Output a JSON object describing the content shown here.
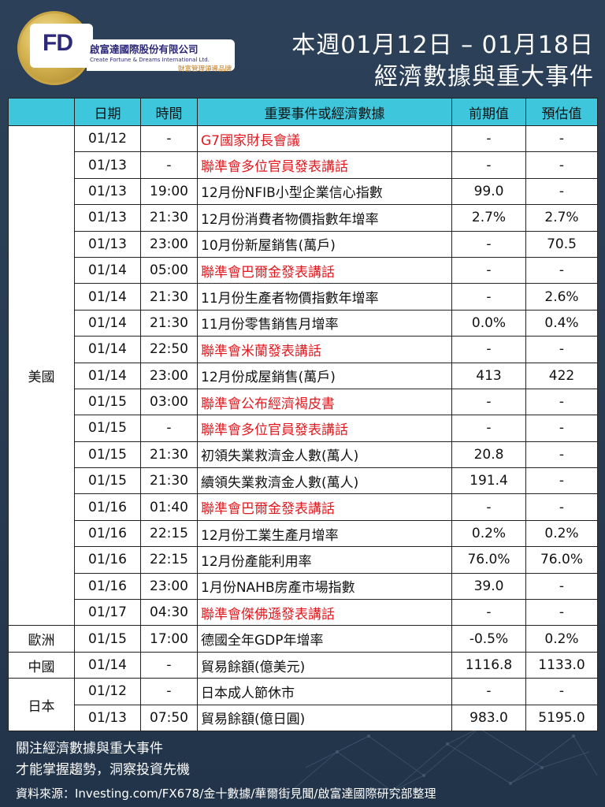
{
  "header": {
    "logo_letters": "FD",
    "company_zh": "啟富達國際股份有限公司",
    "company_en": "Create Fortune & Dreams International Ltd.",
    "company_tagline": "財富管理領導品牌",
    "title_line1": "本週01月12日 – 01月18日",
    "title_line2": "經濟數據與重大事件"
  },
  "table": {
    "headers": [
      "",
      "日期",
      "時間",
      "重要事件或經濟數據",
      "前期值",
      "預估值"
    ],
    "regions": [
      {
        "name": "美國",
        "rows": [
          {
            "date": "01/12",
            "time": "-",
            "event": "G7國家財長會議",
            "prev": "-",
            "est": "-",
            "highlight": true
          },
          {
            "date": "01/13",
            "time": "-",
            "event": "聯準會多位官員發表講話",
            "prev": "-",
            "est": "-",
            "highlight": true
          },
          {
            "date": "01/13",
            "time": "19:00",
            "event": "12月份NFIB小型企業信心指數",
            "prev": "99.0",
            "est": "-",
            "highlight": false
          },
          {
            "date": "01/13",
            "time": "21:30",
            "event": "12月份消費者物價指數年增率",
            "prev": "2.7%",
            "est": "2.7%",
            "highlight": false
          },
          {
            "date": "01/13",
            "time": "23:00",
            "event": "10月份新屋銷售(萬戶)",
            "prev": "-",
            "est": "70.5",
            "highlight": false
          },
          {
            "date": "01/14",
            "time": "05:00",
            "event": "聯準會巴爾金發表講話",
            "prev": "-",
            "est": "-",
            "highlight": true
          },
          {
            "date": "01/14",
            "time": "21:30",
            "event": "11月份生產者物價指數年增率",
            "prev": "-",
            "est": "2.6%",
            "highlight": false
          },
          {
            "date": "01/14",
            "time": "21:30",
            "event": "11月份零售銷售月增率",
            "prev": "0.0%",
            "est": "0.4%",
            "highlight": false
          },
          {
            "date": "01/14",
            "time": "22:50",
            "event": "聯準會米蘭發表講話",
            "prev": "-",
            "est": "-",
            "highlight": true
          },
          {
            "date": "01/14",
            "time": "23:00",
            "event": "12月份成屋銷售(萬戶)",
            "prev": "413",
            "est": "422",
            "highlight": false
          },
          {
            "date": "01/15",
            "time": "03:00",
            "event": "聯準會公布經濟褐皮書",
            "prev": "-",
            "est": "-",
            "highlight": true
          },
          {
            "date": "01/15",
            "time": "-",
            "event": "聯準會多位官員發表講話",
            "prev": "-",
            "est": "-",
            "highlight": true
          },
          {
            "date": "01/15",
            "time": "21:30",
            "event": "初領失業救濟金人數(萬人)",
            "prev": "20.8",
            "est": "-",
            "highlight": false
          },
          {
            "date": "01/15",
            "time": "21:30",
            "event": "續領失業救濟金人數(萬人)",
            "prev": "191.4",
            "est": "-",
            "highlight": false
          },
          {
            "date": "01/16",
            "time": "01:40",
            "event": "聯準會巴爾金發表講話",
            "prev": "-",
            "est": "-",
            "highlight": true
          },
          {
            "date": "01/16",
            "time": "22:15",
            "event": "12月份工業生產月增率",
            "prev": "0.2%",
            "est": "0.2%",
            "highlight": false
          },
          {
            "date": "01/16",
            "time": "22:15",
            "event": "12月份產能利用率",
            "prev": "76.0%",
            "est": "76.0%",
            "highlight": false
          },
          {
            "date": "01/16",
            "time": "23:00",
            "event": "1月份NAHB房產市場指數",
            "prev": "39.0",
            "est": "-",
            "highlight": false
          },
          {
            "date": "01/17",
            "time": "04:30",
            "event": "聯準會傑佛遜發表講話",
            "prev": "-",
            "est": "-",
            "highlight": true
          }
        ]
      },
      {
        "name": "歐洲",
        "rows": [
          {
            "date": "01/15",
            "time": "17:00",
            "event": "德國全年GDP年增率",
            "prev": "-0.5%",
            "est": "0.2%",
            "highlight": false
          }
        ]
      },
      {
        "name": "中國",
        "rows": [
          {
            "date": "01/14",
            "time": "-",
            "event": "貿易餘額(億美元)",
            "prev": "1116.8",
            "est": "1133.0",
            "highlight": false
          }
        ]
      },
      {
        "name": "日本",
        "rows": [
          {
            "date": "01/12",
            "time": "-",
            "event": "日本成人節休市",
            "prev": "-",
            "est": "-",
            "highlight": false
          },
          {
            "date": "01/13",
            "time": "07:50",
            "event": "貿易餘額(億日圓)",
            "prev": "983.0",
            "est": "5195.0",
            "highlight": false
          }
        ]
      }
    ]
  },
  "footer": {
    "line1": "關注經濟數據與重大事件",
    "line2": "才能掌握趨勢，洞察投資先機",
    "source": "資料來源：Investing.com/FX678/金十數據/華爾街見聞/啟富達國際研究部整理"
  },
  "colors": {
    "background": "#2b3f55",
    "header_row": "#3ec6dc",
    "highlight_text": "#e0191f",
    "brand_navy": "#2e2a7a",
    "brand_gold": "#d6b450"
  }
}
